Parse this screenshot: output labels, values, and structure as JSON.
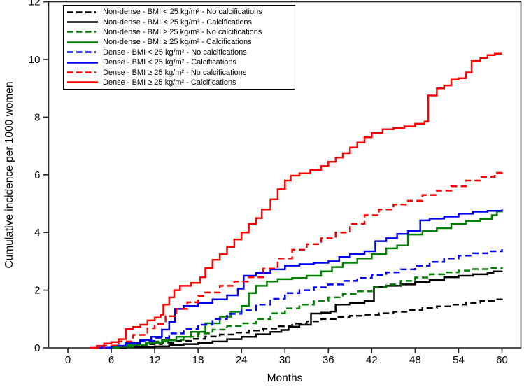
{
  "chart_data": {
    "type": "line",
    "subtype": "step-function-cumulative-incidence",
    "title": "",
    "xlabel": "Months",
    "ylabel": "Cumulative incidence per 1000 women",
    "xlim": [
      -2.7,
      62.6
    ],
    "ylim": [
      0,
      12
    ],
    "x_ticks": [
      0,
      6,
      12,
      18,
      24,
      30,
      36,
      42,
      48,
      54,
      60
    ],
    "y_ticks": [
      0,
      2,
      4,
      6,
      8,
      10,
      12
    ],
    "grid": false,
    "legend_position": "top-left-inside",
    "axis_color": "#262626",
    "palette": {
      "black": "#000000",
      "green": "#008000",
      "blue": "#0000ee",
      "red": "#fe0000"
    },
    "series": [
      {
        "name": "Non-dense - BMI < 25 kg/m² - No calcifications",
        "color": "#000000",
        "dashed": true,
        "points": [
          [
            5,
            0
          ],
          [
            7,
            0.04
          ],
          [
            9,
            0.08
          ],
          [
            11,
            0.13
          ],
          [
            13,
            0.18
          ],
          [
            15,
            0.24
          ],
          [
            17,
            0.31
          ],
          [
            19,
            0.39
          ],
          [
            21,
            0.46
          ],
          [
            23,
            0.53
          ],
          [
            25,
            0.6
          ],
          [
            27,
            0.67
          ],
          [
            29,
            0.75
          ],
          [
            31,
            0.84
          ],
          [
            33,
            0.92
          ],
          [
            35,
            1.0
          ],
          [
            37,
            1.07
          ],
          [
            39,
            1.11
          ],
          [
            41,
            1.15
          ],
          [
            43,
            1.2
          ],
          [
            45,
            1.25
          ],
          [
            47,
            1.31
          ],
          [
            49,
            1.38
          ],
          [
            51,
            1.44
          ],
          [
            53,
            1.5
          ],
          [
            55,
            1.56
          ],
          [
            57,
            1.62
          ],
          [
            59,
            1.68
          ],
          [
            60,
            1.71
          ]
        ]
      },
      {
        "name": "Non-dense - BMI < 25 kg/m² - Calcifications",
        "color": "#000000",
        "dashed": false,
        "points": [
          [
            4,
            0
          ],
          [
            8,
            0.02
          ],
          [
            12,
            0.05
          ],
          [
            14,
            0.1
          ],
          [
            16,
            0.13
          ],
          [
            18,
            0.17
          ],
          [
            20,
            0.22
          ],
          [
            22,
            0.3
          ],
          [
            24,
            0.38
          ],
          [
            26,
            0.47
          ],
          [
            28,
            0.55
          ],
          [
            29.5,
            0.62
          ],
          [
            30.5,
            0.73
          ],
          [
            32,
            0.8
          ],
          [
            33.6,
            1.19
          ],
          [
            35,
            1.22
          ],
          [
            36.3,
            1.26
          ],
          [
            37,
            1.5
          ],
          [
            39,
            1.55
          ],
          [
            41,
            1.63
          ],
          [
            42.3,
            2.11
          ],
          [
            44,
            2.15
          ],
          [
            46,
            2.2
          ],
          [
            48,
            2.28
          ],
          [
            50,
            2.35
          ],
          [
            52,
            2.45
          ],
          [
            54,
            2.5
          ],
          [
            56,
            2.55
          ],
          [
            58,
            2.6
          ],
          [
            58.8,
            2.65
          ],
          [
            60,
            2.67
          ]
        ]
      },
      {
        "name": "Non-dense - BMI ≥ 25 kg/m² - No calcifications",
        "color": "#008000",
        "dashed": true,
        "points": [
          [
            4.5,
            0
          ],
          [
            6,
            0.05
          ],
          [
            8,
            0.1
          ],
          [
            10,
            0.16
          ],
          [
            12,
            0.22
          ],
          [
            14,
            0.28
          ],
          [
            16,
            0.38
          ],
          [
            18,
            0.5
          ],
          [
            20,
            0.63
          ],
          [
            22,
            0.76
          ],
          [
            24,
            0.85
          ],
          [
            26,
            1.0
          ],
          [
            28,
            1.2
          ],
          [
            30,
            1.37
          ],
          [
            32,
            1.5
          ],
          [
            34,
            1.62
          ],
          [
            36,
            1.75
          ],
          [
            38,
            1.87
          ],
          [
            40,
            1.96
          ],
          [
            42,
            2.1
          ],
          [
            44,
            2.2
          ],
          [
            46,
            2.32
          ],
          [
            48,
            2.44
          ],
          [
            50,
            2.55
          ],
          [
            52,
            2.62
          ],
          [
            54,
            2.68
          ],
          [
            56,
            2.73
          ],
          [
            58,
            2.77
          ],
          [
            60,
            2.8
          ]
        ]
      },
      {
        "name": "Non-dense - BMI ≥ 25 kg/m² - Calcifications",
        "color": "#008000",
        "dashed": false,
        "points": [
          [
            5,
            0
          ],
          [
            7,
            0.04
          ],
          [
            9,
            0.1
          ],
          [
            11,
            0.17
          ],
          [
            13,
            0.26
          ],
          [
            15,
            0.38
          ],
          [
            17,
            0.55
          ],
          [
            19,
            0.85
          ],
          [
            21,
            1.08
          ],
          [
            22.5,
            1.25
          ],
          [
            24,
            1.45
          ],
          [
            25,
            1.9
          ],
          [
            26,
            2.15
          ],
          [
            27.5,
            2.3
          ],
          [
            29,
            2.38
          ],
          [
            31,
            2.42
          ],
          [
            33,
            2.5
          ],
          [
            35,
            2.65
          ],
          [
            36.5,
            2.8
          ],
          [
            38,
            2.95
          ],
          [
            40,
            3.1
          ],
          [
            42,
            3.25
          ],
          [
            44,
            3.45
          ],
          [
            45.5,
            3.55
          ],
          [
            47,
            3.93
          ],
          [
            49,
            4.05
          ],
          [
            51,
            4.15
          ],
          [
            53,
            4.3
          ],
          [
            55,
            4.4
          ],
          [
            57,
            4.47
          ],
          [
            58.6,
            4.6
          ],
          [
            59.3,
            4.73
          ],
          [
            60,
            4.75
          ]
        ]
      },
      {
        "name": "Dense - BMI < 25 kg/m² - No calcifications",
        "color": "#0000ee",
        "dashed": true,
        "points": [
          [
            4,
            0
          ],
          [
            6,
            0.08
          ],
          [
            8,
            0.15
          ],
          [
            10,
            0.24
          ],
          [
            12,
            0.35
          ],
          [
            14,
            0.5
          ],
          [
            16,
            0.65
          ],
          [
            18,
            0.8
          ],
          [
            20,
            1.0
          ],
          [
            22,
            1.18
          ],
          [
            24,
            1.3
          ],
          [
            26,
            1.5
          ],
          [
            28,
            1.7
          ],
          [
            30,
            1.9
          ],
          [
            32,
            2.0
          ],
          [
            34,
            2.1
          ],
          [
            36,
            2.2
          ],
          [
            38,
            2.32
          ],
          [
            40,
            2.42
          ],
          [
            42,
            2.52
          ],
          [
            44,
            2.62
          ],
          [
            46,
            2.72
          ],
          [
            48,
            2.85
          ],
          [
            50,
            2.98
          ],
          [
            52,
            3.1
          ],
          [
            54,
            3.2
          ],
          [
            56,
            3.28
          ],
          [
            58,
            3.35
          ],
          [
            60,
            3.42
          ]
        ]
      },
      {
        "name": "Dense - BMI < 25 kg/m² - Calcifications",
        "color": "#0000ee",
        "dashed": false,
        "points": [
          [
            4,
            0
          ],
          [
            6,
            0.07
          ],
          [
            8,
            0.17
          ],
          [
            10,
            0.27
          ],
          [
            11.5,
            0.38
          ],
          [
            13,
            0.63
          ],
          [
            14,
            0.9
          ],
          [
            14.8,
            1.35
          ],
          [
            16,
            1.45
          ],
          [
            18,
            1.55
          ],
          [
            20,
            1.68
          ],
          [
            22,
            1.82
          ],
          [
            23.5,
            2.05
          ],
          [
            24.3,
            2.5
          ],
          [
            26,
            2.6
          ],
          [
            28,
            2.72
          ],
          [
            30,
            2.85
          ],
          [
            32,
            2.9
          ],
          [
            34,
            2.95
          ],
          [
            36,
            3.0
          ],
          [
            37.5,
            3.15
          ],
          [
            39,
            3.25
          ],
          [
            41,
            3.35
          ],
          [
            42.5,
            3.7
          ],
          [
            44,
            3.8
          ],
          [
            45.5,
            3.95
          ],
          [
            47,
            4.05
          ],
          [
            48.7,
            4.42
          ],
          [
            50,
            4.48
          ],
          [
            52,
            4.55
          ],
          [
            54,
            4.65
          ],
          [
            56,
            4.72
          ],
          [
            58,
            4.75
          ],
          [
            60,
            4.8
          ]
        ]
      },
      {
        "name": "Dense - BMI ≥ 25 kg/m² - No calcifications",
        "color": "#fe0000",
        "dashed": true,
        "points": [
          [
            3.5,
            0
          ],
          [
            5,
            0.08
          ],
          [
            7,
            0.22
          ],
          [
            9,
            0.45
          ],
          [
            11,
            0.68
          ],
          [
            12,
            0.83
          ],
          [
            13.5,
            1.1
          ],
          [
            15,
            1.35
          ],
          [
            16.5,
            1.58
          ],
          [
            18,
            1.8
          ],
          [
            19,
            1.92
          ],
          [
            21,
            2.15
          ],
          [
            23,
            2.3
          ],
          [
            25,
            2.45
          ],
          [
            27,
            2.75
          ],
          [
            29,
            3.1
          ],
          [
            31,
            3.4
          ],
          [
            33,
            3.6
          ],
          [
            35,
            3.8
          ],
          [
            37,
            4.0
          ],
          [
            39,
            4.3
          ],
          [
            41,
            4.6
          ],
          [
            43,
            4.8
          ],
          [
            45,
            4.97
          ],
          [
            47,
            5.1
          ],
          [
            49,
            5.3
          ],
          [
            51,
            5.45
          ],
          [
            53,
            5.6
          ],
          [
            55,
            5.8
          ],
          [
            57,
            5.93
          ],
          [
            59,
            6.07
          ],
          [
            60,
            6.12
          ]
        ]
      },
      {
        "name": "Dense - BMI ≥ 25 kg/m² - Calcifications",
        "color": "#fe0000",
        "dashed": false,
        "points": [
          [
            3,
            0
          ],
          [
            4,
            0.07
          ],
          [
            5,
            0.15
          ],
          [
            6,
            0.2
          ],
          [
            7,
            0.3
          ],
          [
            8,
            0.65
          ],
          [
            9,
            0.72
          ],
          [
            10,
            0.8
          ],
          [
            11,
            0.95
          ],
          [
            12,
            1.05
          ],
          [
            12.8,
            1.15
          ],
          [
            13.2,
            1.5
          ],
          [
            14,
            1.75
          ],
          [
            14.7,
            2.0
          ],
          [
            15.5,
            2.15
          ],
          [
            17,
            2.25
          ],
          [
            18.3,
            2.45
          ],
          [
            19,
            2.77
          ],
          [
            20,
            3.05
          ],
          [
            21,
            3.25
          ],
          [
            22,
            3.5
          ],
          [
            23,
            3.76
          ],
          [
            24,
            4.0
          ],
          [
            25,
            4.3
          ],
          [
            26,
            4.5
          ],
          [
            26.8,
            4.8
          ],
          [
            28,
            5.15
          ],
          [
            29,
            5.5
          ],
          [
            30,
            5.8
          ],
          [
            30.8,
            5.97
          ],
          [
            32,
            6.05
          ],
          [
            33.5,
            6.17
          ],
          [
            35,
            6.3
          ],
          [
            36,
            6.45
          ],
          [
            37,
            6.6
          ],
          [
            38,
            6.75
          ],
          [
            39,
            6.95
          ],
          [
            40,
            7.12
          ],
          [
            41,
            7.3
          ],
          [
            42,
            7.45
          ],
          [
            43.5,
            7.58
          ],
          [
            45,
            7.62
          ],
          [
            46.5,
            7.68
          ],
          [
            48,
            7.77
          ],
          [
            49.3,
            7.85
          ],
          [
            49.8,
            8.75
          ],
          [
            51,
            9.0
          ],
          [
            52,
            9.1
          ],
          [
            53,
            9.3
          ],
          [
            54,
            9.35
          ],
          [
            55,
            9.55
          ],
          [
            55.8,
            9.95
          ],
          [
            57,
            10.05
          ],
          [
            58,
            10.15
          ],
          [
            59,
            10.2
          ],
          [
            60,
            10.2
          ]
        ]
      }
    ]
  }
}
